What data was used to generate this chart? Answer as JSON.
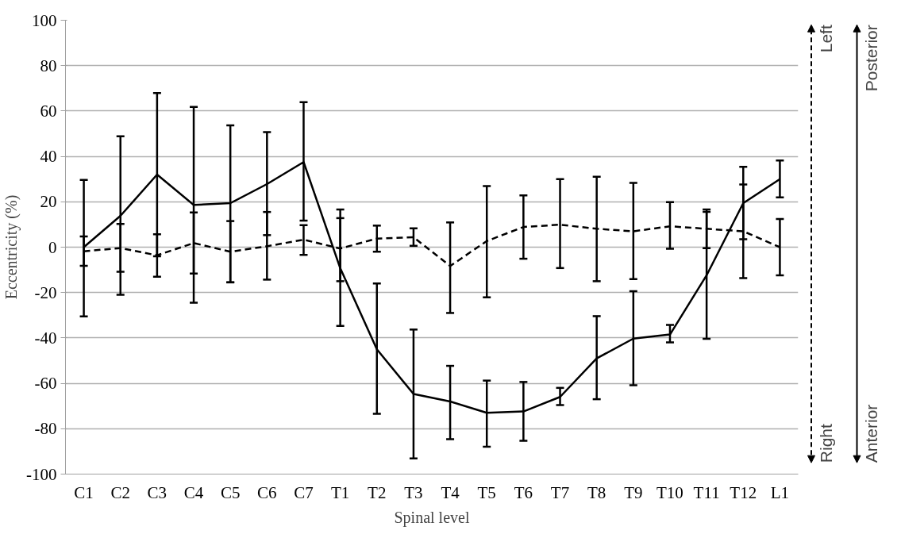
{
  "chart_data": {
    "type": "line",
    "xlabel": "Spinal level",
    "ylabel": "Eccentricity (%)",
    "categories": [
      "C1",
      "C2",
      "C3",
      "C4",
      "C5",
      "C6",
      "C7",
      "T1",
      "T2",
      "T3",
      "T4",
      "T5",
      "T6",
      "T7",
      "T8",
      "T9",
      "T10",
      "T11",
      "T12",
      "L1"
    ],
    "series": [
      {
        "color": "#000000",
        "line_style": "solid",
        "values": [
          0,
          13.8,
          32,
          18.6,
          19.4,
          27.8,
          37.5,
          -9.3,
          -45,
          -64.7,
          -68,
          -73,
          -72.4,
          -66,
          -49,
          -40.3,
          -38.5,
          -12.4,
          19.4,
          30
        ],
        "errors": [
          [
            -30.5,
            29.6
          ],
          [
            -21,
            48.9
          ],
          [
            -4,
            67.9
          ],
          [
            -24.5,
            61.8
          ],
          [
            -15.5,
            53.7
          ],
          [
            5.3,
            50.7
          ],
          [
            11.7,
            63.9
          ],
          [
            -34.7,
            16.6
          ],
          [
            -73.4,
            -16
          ],
          [
            -93.1,
            -36.3
          ],
          [
            -84.6,
            -52.3
          ],
          [
            -87.9,
            -58.8
          ],
          [
            -85.3,
            -59.4
          ],
          [
            -69.6,
            -62
          ],
          [
            -67,
            -30.4
          ],
          [
            -60.8,
            -19.4
          ],
          [
            -42,
            -34.3
          ],
          [
            -40.4,
            15.6
          ],
          [
            3.5,
            35.4
          ],
          [
            21.9,
            38.2
          ]
        ]
      },
      {
        "color": "#000000",
        "line_style": "dashed",
        "values": [
          -1.8,
          -0.4,
          -3.6,
          1.8,
          -2,
          0.4,
          3.3,
          -0.6,
          3.8,
          4.4,
          -8.3,
          2.7,
          8.9,
          9.9,
          8.1,
          7,
          9.2,
          8.1,
          7,
          0
        ],
        "errors": [
          [
            -8.2,
            4.7
          ],
          [
            -10.8,
            10.2
          ],
          [
            -13,
            5.7
          ],
          [
            -11.6,
            15.3
          ],
          [
            -15.5,
            11.5
          ],
          [
            -14.3,
            15.5
          ],
          [
            -3.4,
            9.7
          ],
          [
            -15,
            12.8
          ],
          [
            -2,
            9.5
          ],
          [
            0.6,
            8.3
          ],
          [
            -29,
            10.9
          ],
          [
            -22.1,
            26.9
          ],
          [
            -5.1,
            22.8
          ],
          [
            -9.2,
            30
          ],
          [
            -15,
            31
          ],
          [
            -14.1,
            28.3
          ],
          [
            -0.7,
            19.8
          ],
          [
            -0.4,
            16.6
          ],
          [
            -13.6,
            27.6
          ],
          [
            -12.4,
            12.4
          ]
        ]
      }
    ],
    "ylim": [
      -100,
      100
    ],
    "yticks": [
      -100,
      -80,
      -60,
      -40,
      -20,
      0,
      20,
      40,
      60,
      80,
      100
    ],
    "grid": "y",
    "marker": "none",
    "annotations": [
      "Left",
      "Right",
      "Posterior",
      "Anterior"
    ]
  }
}
